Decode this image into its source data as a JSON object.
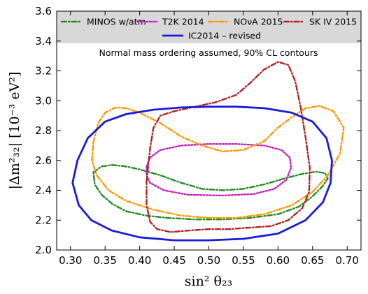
{
  "chart_data": {
    "type": "line",
    "xlabel": "sin² θ₂₃",
    "ylabel": "|Δm²₃₂| [10⁻³ eV²]",
    "xlim": [
      0.28,
      0.72
    ],
    "ylim": [
      2.0,
      3.6
    ],
    "xticks": [
      "0.30",
      "0.35",
      "0.40",
      "0.45",
      "0.50",
      "0.55",
      "0.60",
      "0.65",
      "0.70"
    ],
    "yticks": [
      "2.0",
      "2.2",
      "2.4",
      "2.6",
      "2.8",
      "3.0",
      "3.2",
      "3.4",
      "3.6"
    ],
    "annotation": "Normal mass ordering assumed, 90% CL contours",
    "legend_position": "top (inside, shaded band)",
    "grid": false,
    "series": [
      {
        "name": "MINOS w/atm",
        "color": "#228b22",
        "style": "dashdot",
        "points": [
          [
            0.333,
            2.52
          ],
          [
            0.345,
            2.56
          ],
          [
            0.36,
            2.57
          ],
          [
            0.38,
            2.56
          ],
          [
            0.4,
            2.54
          ],
          [
            0.43,
            2.5
          ],
          [
            0.46,
            2.45
          ],
          [
            0.49,
            2.41
          ],
          [
            0.52,
            2.4
          ],
          [
            0.55,
            2.41
          ],
          [
            0.58,
            2.44
          ],
          [
            0.61,
            2.48
          ],
          [
            0.635,
            2.51
          ],
          [
            0.655,
            2.525
          ],
          [
            0.668,
            2.515
          ],
          [
            0.672,
            2.48
          ],
          [
            0.665,
            2.43
          ],
          [
            0.65,
            2.36
          ],
          [
            0.63,
            2.29
          ],
          [
            0.6,
            2.24
          ],
          [
            0.56,
            2.215
          ],
          [
            0.52,
            2.205
          ],
          [
            0.48,
            2.205
          ],
          [
            0.44,
            2.215
          ],
          [
            0.41,
            2.23
          ],
          [
            0.38,
            2.26
          ],
          [
            0.36,
            2.31
          ],
          [
            0.345,
            2.37
          ],
          [
            0.335,
            2.44
          ],
          [
            0.333,
            2.52
          ]
        ]
      },
      {
        "name": "T2K 2014",
        "color": "#c41ec4",
        "style": "dotted",
        "points": [
          [
            0.41,
            2.56
          ],
          [
            0.415,
            2.62
          ],
          [
            0.43,
            2.67
          ],
          [
            0.46,
            2.7
          ],
          [
            0.5,
            2.71
          ],
          [
            0.54,
            2.71
          ],
          [
            0.58,
            2.7
          ],
          [
            0.605,
            2.67
          ],
          [
            0.617,
            2.62
          ],
          [
            0.619,
            2.55
          ],
          [
            0.612,
            2.47
          ],
          [
            0.595,
            2.41
          ],
          [
            0.565,
            2.375
          ],
          [
            0.52,
            2.365
          ],
          [
            0.47,
            2.37
          ],
          [
            0.435,
            2.4
          ],
          [
            0.415,
            2.45
          ],
          [
            0.41,
            2.5
          ],
          [
            0.41,
            2.56
          ]
        ]
      },
      {
        "name": "NOνA 2015",
        "color": "#ff9900",
        "style": "dashdot",
        "points": [
          [
            0.333,
            2.72
          ],
          [
            0.34,
            2.85
          ],
          [
            0.35,
            2.92
          ],
          [
            0.365,
            2.955
          ],
          [
            0.38,
            2.95
          ],
          [
            0.4,
            2.92
          ],
          [
            0.43,
            2.85
          ],
          [
            0.46,
            2.76
          ],
          [
            0.49,
            2.7
          ],
          [
            0.52,
            2.66
          ],
          [
            0.55,
            2.67
          ],
          [
            0.58,
            2.73
          ],
          [
            0.6,
            2.82
          ],
          [
            0.62,
            2.89
          ],
          [
            0.64,
            2.95
          ],
          [
            0.66,
            2.965
          ],
          [
            0.68,
            2.93
          ],
          [
            0.695,
            2.82
          ],
          [
            0.69,
            2.65
          ],
          [
            0.672,
            2.5
          ],
          [
            0.65,
            2.39
          ],
          [
            0.62,
            2.3
          ],
          [
            0.58,
            2.24
          ],
          [
            0.54,
            2.215
          ],
          [
            0.5,
            2.215
          ],
          [
            0.46,
            2.23
          ],
          [
            0.42,
            2.27
          ],
          [
            0.38,
            2.33
          ],
          [
            0.355,
            2.4
          ],
          [
            0.338,
            2.5
          ],
          [
            0.331,
            2.6
          ],
          [
            0.333,
            2.72
          ]
        ]
      },
      {
        "name": "SK IV 2015",
        "color": "#b22222",
        "style": "dashdot",
        "points": [
          [
            0.41,
            2.46
          ],
          [
            0.415,
            2.68
          ],
          [
            0.42,
            2.82
          ],
          [
            0.43,
            2.9
          ],
          [
            0.45,
            2.93
          ],
          [
            0.48,
            2.96
          ],
          [
            0.51,
            2.99
          ],
          [
            0.54,
            3.04
          ],
          [
            0.56,
            3.12
          ],
          [
            0.58,
            3.21
          ],
          [
            0.6,
            3.26
          ],
          [
            0.615,
            3.24
          ],
          [
            0.625,
            3.13
          ],
          [
            0.633,
            2.95
          ],
          [
            0.64,
            2.75
          ],
          [
            0.646,
            2.55
          ],
          [
            0.645,
            2.39
          ],
          [
            0.635,
            2.28
          ],
          [
            0.615,
            2.2
          ],
          [
            0.59,
            2.16
          ],
          [
            0.56,
            2.15
          ],
          [
            0.53,
            2.14
          ],
          [
            0.5,
            2.14
          ],
          [
            0.47,
            2.13
          ],
          [
            0.445,
            2.12
          ],
          [
            0.425,
            2.14
          ],
          [
            0.415,
            2.19
          ],
          [
            0.41,
            2.3
          ],
          [
            0.41,
            2.46
          ]
        ]
      },
      {
        "name": "IC2014 – revised",
        "color": "#1a1adb",
        "style": "solid",
        "points": [
          [
            0.303,
            2.45
          ],
          [
            0.31,
            2.6
          ],
          [
            0.325,
            2.75
          ],
          [
            0.35,
            2.86
          ],
          [
            0.38,
            2.91
          ],
          [
            0.42,
            2.94
          ],
          [
            0.46,
            2.955
          ],
          [
            0.5,
            2.96
          ],
          [
            0.54,
            2.96
          ],
          [
            0.58,
            2.95
          ],
          [
            0.62,
            2.92
          ],
          [
            0.65,
            2.86
          ],
          [
            0.67,
            2.75
          ],
          [
            0.678,
            2.6
          ],
          [
            0.676,
            2.45
          ],
          [
            0.665,
            2.32
          ],
          [
            0.64,
            2.2
          ],
          [
            0.6,
            2.11
          ],
          [
            0.55,
            2.075
          ],
          [
            0.5,
            2.065
          ],
          [
            0.45,
            2.065
          ],
          [
            0.4,
            2.085
          ],
          [
            0.36,
            2.13
          ],
          [
            0.33,
            2.2
          ],
          [
            0.312,
            2.3
          ],
          [
            0.303,
            2.45
          ]
        ]
      }
    ]
  }
}
